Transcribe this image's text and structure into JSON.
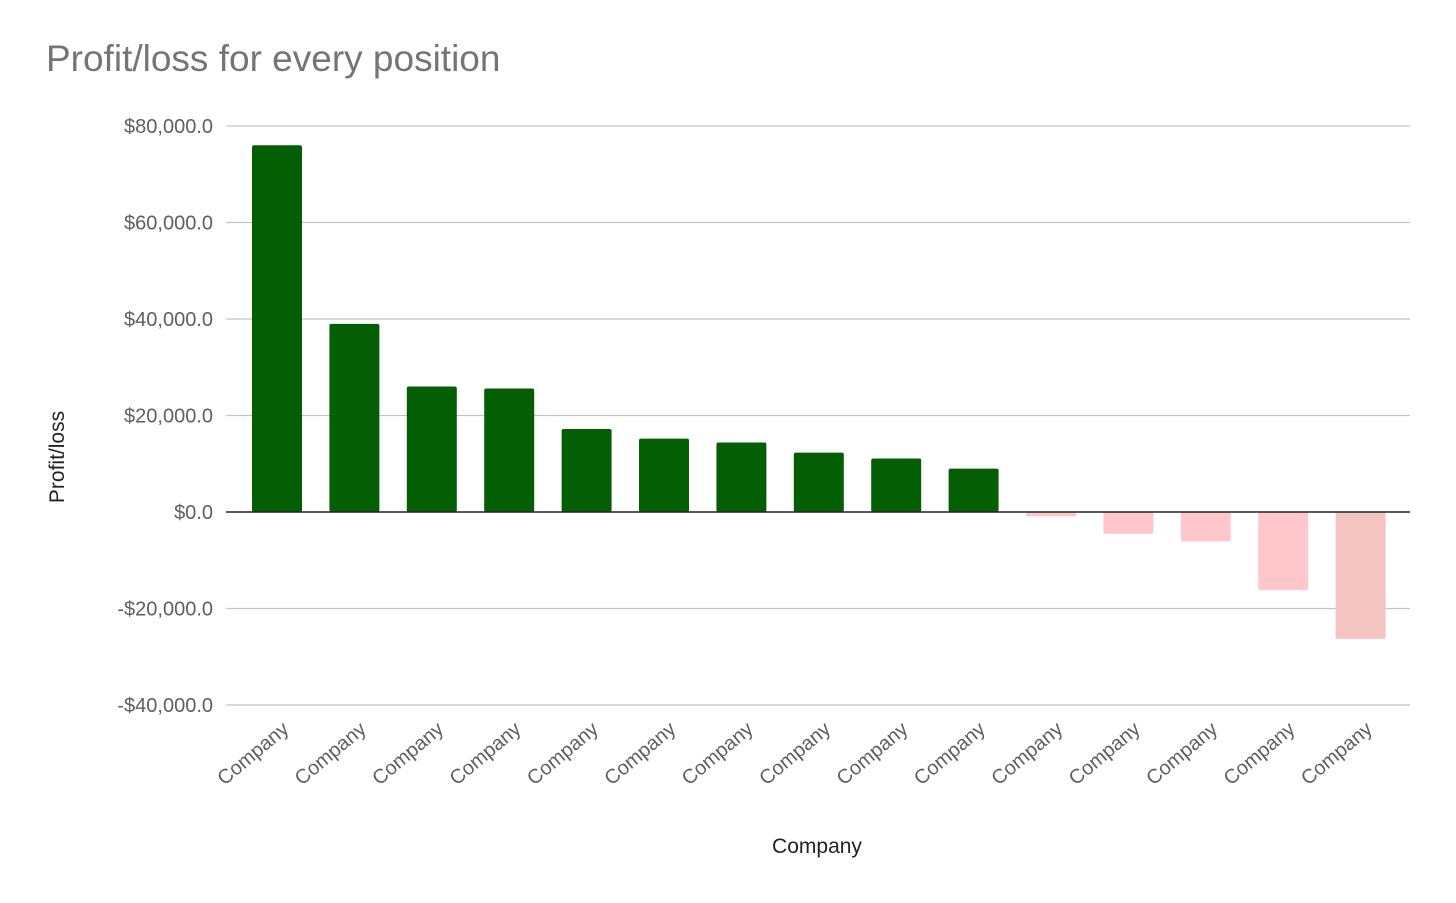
{
  "chart_data": {
    "type": "bar",
    "title": "Profit/loss for every position",
    "xlabel": "Company",
    "ylabel": "Profit/loss",
    "ylim": [
      -40000,
      80000
    ],
    "y_ticks": [
      80000,
      60000,
      40000,
      20000,
      0,
      -20000,
      -40000
    ],
    "y_tick_labels": [
      "$80,000.0",
      "$60,000.0",
      "$40,000.0",
      "$20,000.0",
      "$0.0",
      "-$20,000.0",
      "-$40,000.0"
    ],
    "grid": true,
    "legend": "none",
    "categories": [
      "Company",
      "Company",
      "Company",
      "Company",
      "Company",
      "Company",
      "Company",
      "Company",
      "Company",
      "Company",
      "Company",
      "Company",
      "Company",
      "Company",
      "Company"
    ],
    "values": [
      76000,
      39000,
      26000,
      25600,
      17200,
      15200,
      14400,
      12300,
      11100,
      9000,
      -900,
      -4500,
      -6100,
      -16200,
      -26300
    ],
    "colors": {
      "positive": "#045f04",
      "negative": "#ffc7cc",
      "negative_largest": "#f3c4c0",
      "gridline": "#c4c4c4",
      "zero_line": "#222222"
    }
  }
}
